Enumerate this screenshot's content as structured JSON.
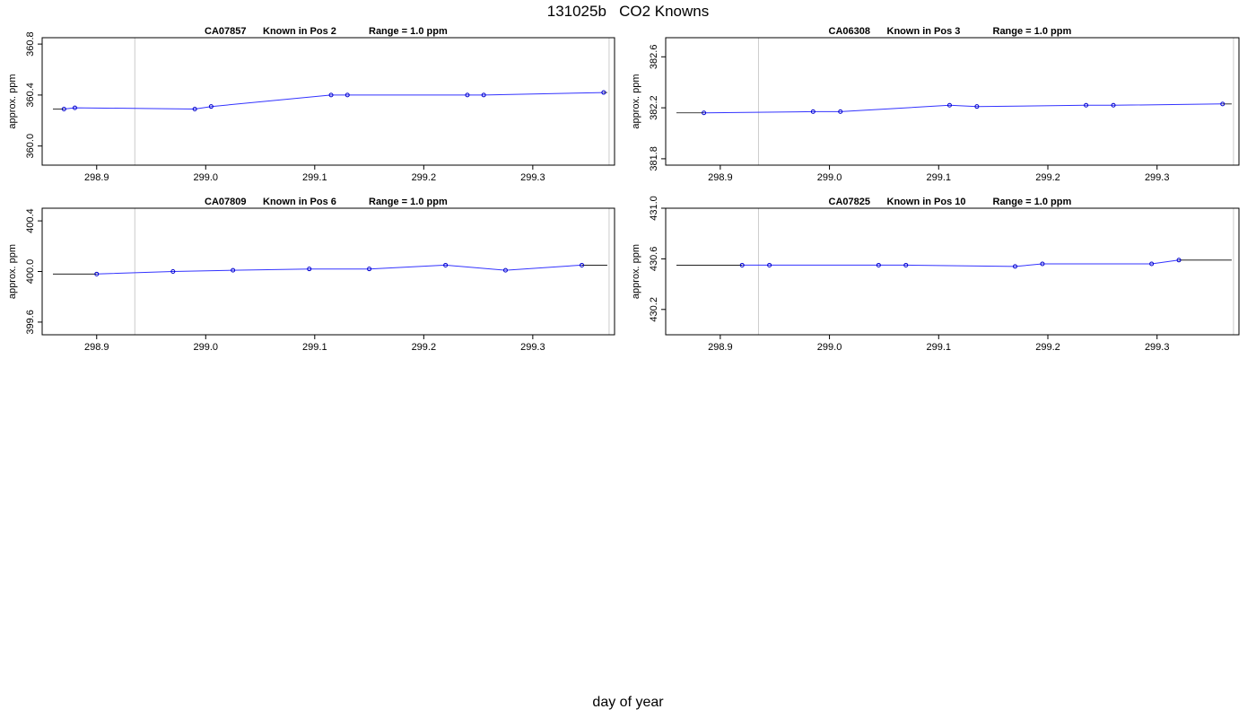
{
  "page_title": "131025b   CO2 Knowns",
  "x_axis_label": "day of year",
  "colors": {
    "line": "#3333ff",
    "point": "#0000cc",
    "boundary": "#cccccc",
    "frame": "#000000"
  },
  "chart_data": [
    {
      "type": "line",
      "title_parts": [
        "CA07857",
        "Known in Pos 2",
        "Range = 1.0 ppm"
      ],
      "ylabel": "approx. ppm",
      "xlim": [
        298.85,
        299.375
      ],
      "ylim": [
        359.85,
        360.85
      ],
      "xticks": [
        298.9,
        299.0,
        299.1,
        299.2,
        299.3
      ],
      "xtick_labels": [
        "298.9",
        "299.0",
        "299.1",
        "299.2",
        "299.3"
      ],
      "yticks": [
        360.0,
        360.4,
        360.8
      ],
      "ytick_labels": [
        "360.0",
        "360.4",
        "360.8"
      ],
      "boundaries": [
        298.935,
        299.37
      ],
      "series": [
        {
          "x": [
            298.87,
            298.88,
            298.99,
            299.005,
            299.115,
            299.13,
            299.24,
            299.255,
            299.365
          ],
          "y": [
            360.29,
            360.3,
            360.29,
            360.31,
            360.4,
            360.4,
            360.4,
            360.4,
            360.42
          ]
        }
      ]
    },
    {
      "type": "line",
      "title_parts": [
        "CA06308",
        "Known in Pos 3",
        "Range = 1.0 ppm"
      ],
      "ylabel": "approx. ppm",
      "xlim": [
        298.85,
        299.375
      ],
      "ylim": [
        381.75,
        382.75
      ],
      "xticks": [
        298.9,
        299.0,
        299.1,
        299.2,
        299.3
      ],
      "xtick_labels": [
        "298.9",
        "299.0",
        "299.1",
        "299.2",
        "299.3"
      ],
      "yticks": [
        381.8,
        382.2,
        382.6
      ],
      "ytick_labels": [
        "381.8",
        "382.2",
        "382.6"
      ],
      "boundaries": [
        298.935,
        299.37
      ],
      "series": [
        {
          "x": [
            298.885,
            298.985,
            299.01,
            299.11,
            299.135,
            299.235,
            299.26,
            299.36
          ],
          "y": [
            382.16,
            382.17,
            382.17,
            382.22,
            382.21,
            382.22,
            382.22,
            382.23
          ]
        }
      ]
    },
    {
      "type": "line",
      "title_parts": [
        "CA07809",
        "Known in Pos 6",
        "Range = 1.0 ppm"
      ],
      "ylabel": "approx. ppm",
      "xlim": [
        298.85,
        299.375
      ],
      "ylim": [
        399.5,
        400.5
      ],
      "xticks": [
        298.9,
        299.0,
        299.1,
        299.2,
        299.3
      ],
      "xtick_labels": [
        "298.9",
        "299.0",
        "299.1",
        "299.2",
        "299.3"
      ],
      "yticks": [
        399.6,
        400.0,
        400.4
      ],
      "ytick_labels": [
        "399.6",
        "400.0",
        "400.4"
      ],
      "boundaries": [
        298.935,
        299.37
      ],
      "series": [
        {
          "x": [
            298.9,
            298.97,
            299.025,
            299.095,
            299.15,
            299.22,
            299.275,
            299.345
          ],
          "y": [
            399.98,
            400.0,
            400.01,
            400.02,
            400.02,
            400.05,
            400.01,
            400.05
          ]
        }
      ]
    },
    {
      "type": "line",
      "title_parts": [
        "CA07825",
        "Known in Pos 10",
        "Range = 1.0 ppm"
      ],
      "ylabel": "approx. ppm",
      "xlim": [
        298.85,
        299.375
      ],
      "ylim": [
        430.0,
        431.0
      ],
      "xticks": [
        298.9,
        299.0,
        299.1,
        299.2,
        299.3
      ],
      "xtick_labels": [
        "298.9",
        "299.0",
        "299.1",
        "299.2",
        "299.3"
      ],
      "yticks": [
        430.2,
        430.6,
        431.0
      ],
      "ytick_labels": [
        "430.2",
        "430.6",
        "431.0"
      ],
      "boundaries": [
        298.935,
        299.37
      ],
      "series": [
        {
          "x": [
            298.92,
            298.945,
            299.045,
            299.07,
            299.17,
            299.195,
            299.295,
            299.32
          ],
          "y": [
            430.55,
            430.55,
            430.55,
            430.55,
            430.54,
            430.56,
            430.56,
            430.59
          ]
        }
      ]
    }
  ]
}
